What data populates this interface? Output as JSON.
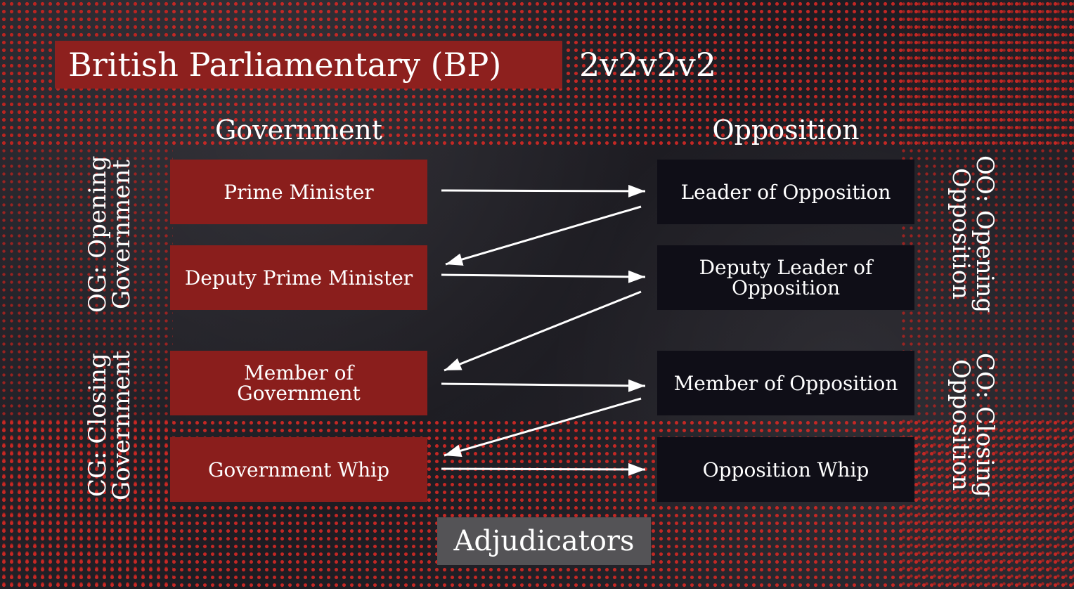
{
  "title": "British Parliamentary (BP)",
  "format": "2v2v2v2",
  "headings": {
    "government": "Government",
    "opposition": "Opposition"
  },
  "teams": {
    "og": "OG: Opening\nGovernment",
    "cg": "CG: Closing\nGovernment",
    "oo": "OO: Opening\nOpposition",
    "co": "CO: Closing\nOpposition"
  },
  "government": [
    "Prime Minister",
    "Deputy Prime Minister",
    "Member of Government",
    "Government Whip"
  ],
  "opposition": [
    "Leader of Opposition",
    "Deputy Leader of Opposition",
    "Member of Opposition",
    "Opposition Whip"
  ],
  "adjudicators": "Adjudicators",
  "colors": {
    "government_box": "#8a1e1c",
    "opposition_box": "#0f0e17",
    "accent_red": "#b8201d",
    "background": "#24232a",
    "text": "#ffffff"
  }
}
